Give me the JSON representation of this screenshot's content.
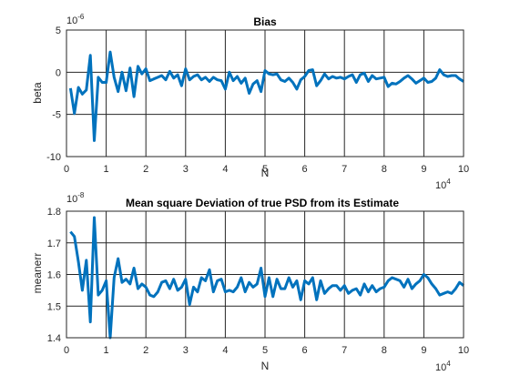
{
  "chart_data": [
    {
      "type": "line",
      "title": "Bias",
      "xlabel": "N",
      "ylabel": "beta",
      "xlim": [
        0,
        100000
      ],
      "ylim": [
        -10,
        5
      ],
      "x_ticks": [
        "0",
        "1",
        "2",
        "3",
        "4",
        "5",
        "6",
        "7",
        "8",
        "9",
        "10"
      ],
      "y_ticks": [
        "-10",
        "-5",
        "0",
        "5"
      ],
      "x_exponent": "10",
      "x_exponent_power": "4",
      "y_exponent": "10",
      "y_exponent_power": "-6",
      "grid": true,
      "line_color": "#0072BD",
      "series": [
        {
          "x": [
            1000,
            2000,
            3000,
            4000,
            5000,
            6000,
            7000,
            8000,
            9000,
            10000,
            11000,
            12000,
            13000,
            14000,
            15000,
            16000,
            17000,
            18000,
            19000,
            20000,
            21000,
            22000,
            23000,
            24000,
            25000,
            26000,
            27000,
            28000,
            29000,
            30000,
            31000,
            32000,
            33000,
            34000,
            35000,
            36000,
            37000,
            38000,
            39000,
            40000,
            41000,
            42000,
            43000,
            44000,
            45000,
            46000,
            47000,
            48000,
            49000,
            50000,
            51000,
            52000,
            53000,
            54000,
            55000,
            56000,
            57000,
            58000,
            59000,
            60000,
            61000,
            62000,
            63000,
            64000,
            65000,
            66000,
            67000,
            68000,
            69000,
            70000,
            71000,
            72000,
            73000,
            74000,
            75000,
            76000,
            77000,
            78000,
            79000,
            80000,
            81000,
            82000,
            83000,
            84000,
            85000,
            86000,
            87000,
            88000,
            89000,
            90000,
            91000,
            92000,
            93000,
            94000,
            95000,
            96000,
            97000,
            98000,
            99000,
            100000
          ],
          "values": [
            -1.9,
            -4.9,
            -1.8,
            -2.6,
            -2.1,
            2.0,
            -8.1,
            -0.6,
            -1.2,
            -1.2,
            2.4,
            -0.6,
            -2.3,
            0.0,
            -2.2,
            0.5,
            -2.9,
            0.7,
            -0.2,
            0.4,
            -1.0,
            -0.8,
            -0.6,
            -0.4,
            -0.9,
            0.1,
            -0.7,
            -0.3,
            -1.6,
            0.4,
            -0.9,
            -0.5,
            -0.3,
            -0.9,
            -0.6,
            -1.1,
            -0.6,
            -0.9,
            -1.0,
            -2.0,
            0.0,
            -1.0,
            -0.5,
            -1.3,
            -0.7,
            -2.5,
            -1.4,
            -1.0,
            -2.3,
            0.2,
            -0.2,
            -0.3,
            -0.2,
            -0.9,
            -1.1,
            -0.7,
            -1.2,
            -2.0,
            -0.9,
            -0.5,
            0.2,
            0.3,
            -1.6,
            -1.0,
            -0.2,
            -0.8,
            -0.5,
            -0.7,
            -0.6,
            -0.8,
            -0.5,
            -0.3,
            -1.2,
            -0.3,
            -0.1,
            -1.1,
            -0.4,
            -0.8,
            -0.7,
            -0.6,
            -1.7,
            -1.3,
            -1.4,
            -1.1,
            -0.7,
            -0.4,
            -0.8,
            -1.3,
            -1.0,
            -0.7,
            -1.2,
            -1.1,
            -0.7,
            0.3,
            -0.3,
            -0.5,
            -0.4,
            -0.4,
            -0.8,
            -1.1
          ]
        }
      ]
    },
    {
      "type": "line",
      "title": "Mean square Deviation of true PSD from its Estimate",
      "xlabel": "N",
      "ylabel": "meanerr",
      "xlim": [
        0,
        100000
      ],
      "ylim": [
        1.4,
        1.8
      ],
      "x_ticks": [
        "0",
        "1",
        "2",
        "3",
        "4",
        "5",
        "6",
        "7",
        "8",
        "9",
        "10"
      ],
      "y_ticks": [
        "1.4",
        "1.5",
        "1.6",
        "1.7",
        "1.8"
      ],
      "x_exponent": "10",
      "x_exponent_power": "4",
      "y_exponent": "10",
      "y_exponent_power": "-8",
      "grid": true,
      "line_color": "#0072BD",
      "series": [
        {
          "x": [
            1000,
            2000,
            3000,
            4000,
            5000,
            6000,
            7000,
            8000,
            9000,
            10000,
            11000,
            12000,
            13000,
            14000,
            15000,
            16000,
            17000,
            18000,
            19000,
            20000,
            21000,
            22000,
            23000,
            24000,
            25000,
            26000,
            27000,
            28000,
            29000,
            30000,
            31000,
            32000,
            33000,
            34000,
            35000,
            36000,
            37000,
            38000,
            39000,
            40000,
            41000,
            42000,
            43000,
            44000,
            45000,
            46000,
            47000,
            48000,
            49000,
            50000,
            51000,
            52000,
            53000,
            54000,
            55000,
            56000,
            57000,
            58000,
            59000,
            60000,
            61000,
            62000,
            63000,
            64000,
            65000,
            66000,
            67000,
            68000,
            69000,
            70000,
            71000,
            72000,
            73000,
            74000,
            75000,
            76000,
            77000,
            78000,
            79000,
            80000,
            81000,
            82000,
            83000,
            84000,
            85000,
            86000,
            87000,
            88000,
            89000,
            90000,
            91000,
            92000,
            93000,
            94000,
            95000,
            96000,
            97000,
            98000,
            99000,
            100000
          ],
          "values": [
            1.735,
            1.72,
            1.64,
            1.55,
            1.645,
            1.45,
            1.78,
            1.535,
            1.55,
            1.58,
            1.4,
            1.59,
            1.65,
            1.575,
            1.585,
            1.57,
            1.62,
            1.555,
            1.57,
            1.56,
            1.535,
            1.53,
            1.545,
            1.575,
            1.58,
            1.555,
            1.585,
            1.55,
            1.56,
            1.585,
            1.505,
            1.56,
            1.545,
            1.59,
            1.58,
            1.615,
            1.545,
            1.58,
            1.585,
            1.545,
            1.55,
            1.545,
            1.56,
            1.59,
            1.545,
            1.575,
            1.56,
            1.57,
            1.62,
            1.53,
            1.59,
            1.53,
            1.585,
            1.555,
            1.555,
            1.59,
            1.56,
            1.58,
            1.52,
            1.58,
            1.57,
            1.59,
            1.52,
            1.58,
            1.54,
            1.555,
            1.565,
            1.565,
            1.55,
            1.565,
            1.54,
            1.55,
            1.555,
            1.535,
            1.57,
            1.545,
            1.565,
            1.545,
            1.555,
            1.56,
            1.58,
            1.59,
            1.585,
            1.58,
            1.56,
            1.585,
            1.555,
            1.57,
            1.58,
            1.6,
            1.59,
            1.57,
            1.555,
            1.535,
            1.54,
            1.545,
            1.54,
            1.555,
            1.575,
            1.565
          ]
        }
      ]
    }
  ]
}
